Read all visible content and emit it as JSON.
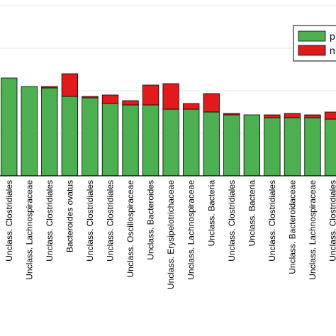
{
  "chart_data": {
    "type": "bar",
    "stacked": true,
    "categories": [
      "Unclass. Clostridiales",
      "Unclass. Lachnospiraceae",
      "Unclass. Clostridiales",
      "Bacteroides ovatus",
      "Unclass. Clostridiales",
      "Unclass. Clostridiales",
      "Unclass. Oscillospiraceae",
      "Unclass. Bacteroides",
      "Unclass. Erysipelotrichaceae",
      "Unclass. Lachnospiraceae",
      "Unclass. Bacteria",
      "Unclass. Clostridiales",
      "Unclass. Bacteria",
      "Unclass. Clostridiales",
      "Unclass. Bacteroidaceae",
      "Unclass. Lachnospiraceae",
      "Unclass. Clostridiales"
    ],
    "series": [
      {
        "name": "p",
        "color": "#4caf50",
        "values": [
          69,
          63,
          62,
          56,
          55,
          51,
          50,
          50,
          47,
          47,
          45,
          43,
          43,
          41,
          41,
          41,
          40
        ]
      },
      {
        "name": "n",
        "color": "#e31a1c",
        "values": [
          0,
          0,
          1,
          16,
          1,
          6,
          3,
          14,
          18,
          4,
          13,
          1,
          0,
          2,
          3,
          2,
          5
        ]
      }
    ],
    "ylim": [
      0,
      125
    ],
    "grid": true,
    "legend_position": "top-right"
  }
}
